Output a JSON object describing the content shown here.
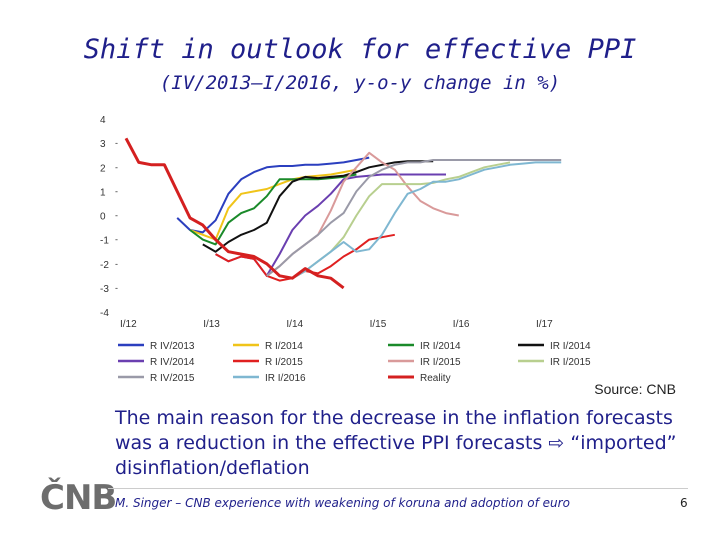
{
  "slide": {
    "title": "Shift in outlook for effective PPI",
    "subtitle": "(IV/2013–I/2016, y-o-y change in %)",
    "source": "Source: CNB",
    "body_text": "The main reason for the decrease in the inflation forecasts was a reduction in the effective PPI forecasts ⇨ “imported” disinflation/deflation",
    "logo_text": "ČNB",
    "footer": "M. Singer – CNB experience with weakening of koruna and adoption of euro",
    "page_number": "6"
  },
  "chart_data": {
    "type": "line",
    "title": "",
    "xlabel": "",
    "ylabel": "",
    "ylim": [
      -4,
      4
    ],
    "yticks": [
      "4",
      "3",
      "2",
      "1",
      "0",
      "-1",
      "-2",
      "-3",
      "-4"
    ],
    "xticks": [
      "I/12",
      "I/13",
      "I/14",
      "I/15",
      "I/16",
      "I/17"
    ],
    "legend_position": "bottom",
    "grid": false,
    "series": [
      {
        "name": "R IV/2013",
        "color": "#2b3fbf",
        "x": [
          4,
          5,
          6,
          7,
          8,
          9,
          10,
          11,
          12,
          13,
          14,
          15,
          16,
          17,
          18,
          19
        ],
        "y": [
          -0.1,
          -0.6,
          -0.7,
          -0.2,
          0.9,
          1.5,
          1.8,
          2.0,
          2.05,
          2.05,
          2.1,
          2.1,
          2.15,
          2.2,
          2.3,
          2.4
        ]
      },
      {
        "name": "R I/2014",
        "color": "#f0c419",
        "x": [
          5,
          6,
          7,
          8,
          9,
          10,
          11,
          12,
          13,
          14,
          15,
          16,
          17,
          18
        ],
        "y": [
          -0.6,
          -0.8,
          -1.0,
          0.3,
          0.9,
          1.0,
          1.1,
          1.3,
          1.5,
          1.6,
          1.65,
          1.7,
          1.8,
          1.9
        ]
      },
      {
        "name": "IR I/2014",
        "color": "#1a8a2a",
        "x": [
          5,
          6,
          7,
          8,
          9,
          10,
          11,
          12,
          13,
          14,
          15,
          16,
          17,
          18
        ],
        "y": [
          -0.6,
          -1.0,
          -1.2,
          -0.3,
          0.1,
          0.3,
          0.8,
          1.5,
          1.5,
          1.5,
          1.5,
          1.55,
          1.6,
          1.7
        ]
      },
      {
        "name": "IR I/2014",
        "color": "#111111",
        "x": [
          6,
          7,
          8,
          9,
          10,
          11,
          12,
          13,
          14,
          15,
          16,
          17,
          18,
          19,
          20,
          21,
          22,
          23,
          24
        ],
        "y": [
          -1.2,
          -1.5,
          -1.1,
          -0.8,
          -0.6,
          -0.3,
          0.8,
          1.4,
          1.6,
          1.55,
          1.6,
          1.65,
          1.8,
          2.0,
          2.1,
          2.2,
          2.25,
          2.25,
          2.25
        ]
      },
      {
        "name": "R IV/2014",
        "color": "#6a3fb0",
        "x": [
          7,
          8,
          9,
          10,
          11,
          12,
          13,
          14,
          15,
          16,
          17,
          18,
          19,
          20,
          21,
          22,
          23,
          24,
          25
        ],
        "y": [
          -1.6,
          -1.9,
          -1.7,
          -1.8,
          -2.5,
          -1.6,
          -0.6,
          0.0,
          0.4,
          0.9,
          1.5,
          1.6,
          1.65,
          1.7,
          1.7,
          1.7,
          1.7,
          1.7,
          1.7
        ]
      },
      {
        "name": "R I/2015",
        "color": "#e02020",
        "x": [
          7,
          8,
          9,
          10,
          11,
          12,
          13,
          14,
          15,
          16,
          17,
          18,
          19,
          20,
          21
        ],
        "y": [
          -1.6,
          -1.9,
          -1.7,
          -1.8,
          -2.5,
          -2.7,
          -2.6,
          -2.3,
          -2.4,
          -2.1,
          -1.7,
          -1.4,
          -1.0,
          -0.9,
          -0.8
        ]
      },
      {
        "name": "IR I/2015",
        "color": "#d99a9a",
        "x": [
          11,
          12,
          13,
          14,
          15,
          16,
          17,
          18,
          19,
          20,
          21,
          22,
          23,
          24,
          25,
          26
        ],
        "y": [
          -2.5,
          -2.1,
          -1.6,
          -1.2,
          -0.8,
          0.2,
          1.4,
          2.0,
          2.6,
          2.2,
          1.9,
          1.2,
          0.6,
          0.3,
          0.1,
          0.0
        ]
      },
      {
        "name": "IR I/2015",
        "color": "#b8cf8f",
        "x": [
          13,
          14,
          15,
          16,
          17,
          18,
          19,
          20,
          21,
          22,
          23,
          24,
          25,
          26,
          27,
          28,
          29,
          30
        ],
        "y": [
          -2.6,
          -2.3,
          -1.9,
          -1.5,
          -0.9,
          0.0,
          0.8,
          1.3,
          1.3,
          1.3,
          1.3,
          1.35,
          1.5,
          1.6,
          1.8,
          2.0,
          2.1,
          2.2
        ]
      },
      {
        "name": "R IV/2015",
        "color": "#9a9aa8",
        "x": [
          11,
          12,
          13,
          14,
          15,
          16,
          17,
          18,
          19,
          20,
          21,
          22,
          23,
          24,
          25,
          26,
          27,
          28,
          29,
          30,
          31,
          32,
          33,
          34
        ],
        "y": [
          -2.5,
          -2.1,
          -1.6,
          -1.2,
          -0.8,
          -0.3,
          0.1,
          1.0,
          1.6,
          1.9,
          2.1,
          2.2,
          2.2,
          2.3,
          2.3,
          2.3,
          2.3,
          2.3,
          2.3,
          2.3,
          2.3,
          2.3,
          2.3,
          2.3
        ]
      },
      {
        "name": "IR I/2016",
        "color": "#7fb7d1",
        "x": [
          13,
          14,
          15,
          16,
          17,
          18,
          19,
          20,
          21,
          22,
          23,
          24,
          25,
          26,
          27,
          28,
          29,
          30,
          31,
          32,
          33,
          34
        ],
        "y": [
          -2.6,
          -2.3,
          -1.9,
          -1.5,
          -1.1,
          -1.5,
          -1.4,
          -0.8,
          0.1,
          0.9,
          1.1,
          1.4,
          1.4,
          1.5,
          1.7,
          1.9,
          2.0,
          2.1,
          2.15,
          2.2,
          2.2,
          2.2
        ]
      },
      {
        "name": "Reality",
        "color": "#d42020",
        "width": 3,
        "x": [
          0,
          1,
          2,
          3,
          4,
          5,
          6,
          7,
          8,
          9,
          10,
          11,
          12,
          13,
          14,
          15,
          16,
          17
        ],
        "y": [
          3.2,
          2.2,
          2.1,
          2.1,
          1.0,
          -0.1,
          -0.4,
          -1.0,
          -1.5,
          -1.6,
          -1.7,
          -2.0,
          -2.5,
          -2.6,
          -2.2,
          -2.5,
          -2.6,
          -3.0
        ]
      }
    ]
  }
}
